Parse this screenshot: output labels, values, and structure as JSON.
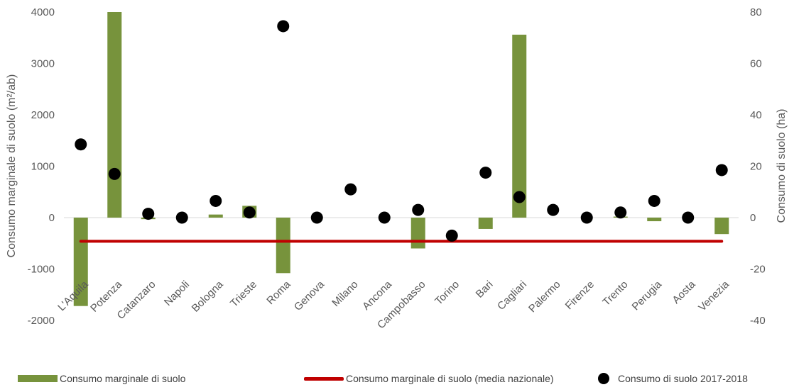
{
  "chart_data": {
    "type": "bar",
    "categories": [
      "L'Aquila",
      "Potenza",
      "Catanzaro",
      "Napoli",
      "Bologna",
      "Trieste",
      "Roma",
      "Genova",
      "Milano",
      "Ancona",
      "Campobasso",
      "Torino",
      "Bari",
      "Cagliari",
      "Palermo",
      "Firenze",
      "Trento",
      "Perugia",
      "Aosta",
      "Venezia"
    ],
    "ylabel": "Consumo marginale di suolo (m²/ab)",
    "y2label": "Consumo di suolo (ha)",
    "ylim": [
      -2000,
      4000
    ],
    "y2lim": [
      -40,
      80
    ],
    "yticks": [
      "4000",
      "3000",
      "2000",
      "1000",
      "0",
      "-1000",
      "-2000"
    ],
    "y2ticks": [
      "80",
      "60",
      "40",
      "20",
      "0",
      "-20",
      "-40"
    ],
    "series": [
      {
        "name": "Consumo marginale di suolo",
        "type": "bar",
        "axis": "left",
        "color": "#77933c",
        "values": [
          -1720,
          4000,
          -30,
          0,
          60,
          230,
          -1080,
          0,
          0,
          0,
          -600,
          0,
          -220,
          3560,
          0,
          0,
          20,
          -70,
          0,
          -320
        ]
      },
      {
        "name": "Consumo marginale di suolo (media nazionale)",
        "type": "line",
        "axis": "left",
        "color": "#c00000",
        "values": [
          -460,
          -460,
          -460,
          -460,
          -460,
          -460,
          -460,
          -460,
          -460,
          -460,
          -460,
          -460,
          -460,
          -460,
          -460,
          -460,
          -460,
          -460,
          -460,
          -460
        ]
      },
      {
        "name": "Consumo di suolo 2017-2018",
        "type": "scatter",
        "axis": "right",
        "color": "#000000",
        "values": [
          28.5,
          17,
          1.5,
          0,
          6.5,
          2,
          74.5,
          0,
          11,
          0,
          3,
          -7,
          17.5,
          8,
          3,
          0,
          2,
          6.5,
          0,
          18.5
        ]
      }
    ],
    "grid": false,
    "legend_position": "bottom"
  },
  "legend": {
    "bar_label": "Consumo marginale di suolo",
    "line_label": "Consumo marginale di suolo (media nazionale)",
    "dot_label": "Consumo di suolo 2017-2018"
  }
}
